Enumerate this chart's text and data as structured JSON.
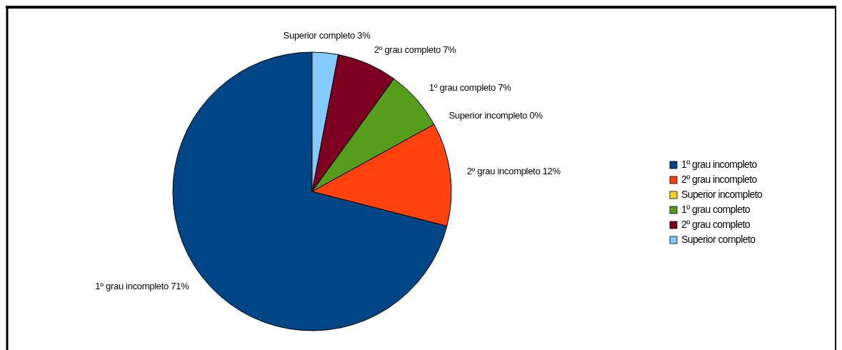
{
  "chart_data": {
    "type": "pie",
    "categories": [
      "1º grau incompleto",
      "2º grau incompleto",
      "Superior incompleto",
      "1º grau completo",
      "2º grau completo",
      "Superior completo"
    ],
    "values": [
      71,
      12,
      0,
      7,
      7,
      3
    ],
    "value_labels": [
      "71%",
      "12%",
      "0%",
      "7%",
      "7%",
      "3%"
    ],
    "colors": [
      "#004586",
      "#ff420e",
      "#ffd320",
      "#579d1c",
      "#7e0021",
      "#83caff"
    ],
    "legend": "right"
  }
}
